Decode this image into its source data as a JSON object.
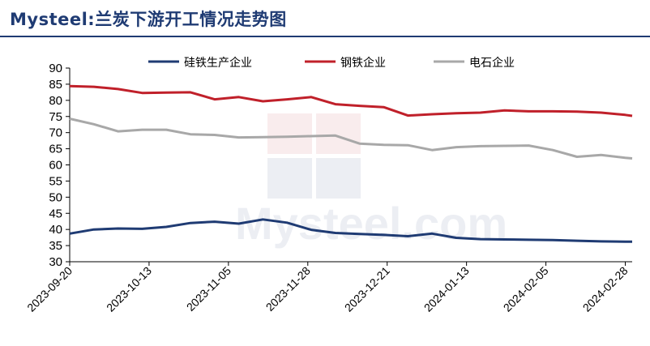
{
  "chart_data": {
    "type": "line",
    "title": "Mysteel:兰炭下游开工情况走势图",
    "watermark": "Mysteel.com",
    "ylim": [
      30,
      90
    ],
    "yticks": [
      30,
      35,
      40,
      45,
      50,
      55,
      60,
      65,
      70,
      75,
      80,
      85,
      90
    ],
    "x_tick_labels": [
      "2023-09-20",
      "2023-10-13",
      "2023-11-05",
      "2023-11-28",
      "2023-12-21",
      "2024-01-13",
      "2024-02-05",
      "2024-02-28"
    ],
    "x": [
      "2023-09-20",
      "2023-09-27",
      "2023-10-04",
      "2023-10-11",
      "2023-10-18",
      "2023-10-25",
      "2023-11-01",
      "2023-11-08",
      "2023-11-15",
      "2023-11-22",
      "2023-11-29",
      "2023-12-06",
      "2023-12-13",
      "2023-12-20",
      "2023-12-27",
      "2024-01-03",
      "2024-01-10",
      "2024-01-17",
      "2024-01-24",
      "2024-01-31",
      "2024-02-07",
      "2024-02-14",
      "2024-02-21",
      "2024-02-28",
      "2024-03-01"
    ],
    "series": [
      {
        "name": "硅铁生产企业",
        "color": "#1f3b73",
        "values": [
          38.7,
          40.0,
          40.3,
          40.2,
          40.8,
          42.0,
          42.4,
          41.8,
          43.1,
          42.1,
          39.9,
          38.9,
          38.6,
          38.3,
          37.9,
          38.7,
          37.4,
          37.0,
          36.9,
          36.8,
          36.7,
          36.5,
          36.3,
          36.2,
          36.2
        ]
      },
      {
        "name": "钢铁企业",
        "color": "#c0202a",
        "values": [
          84.4,
          84.2,
          83.5,
          82.3,
          82.4,
          82.5,
          80.3,
          81.0,
          79.7,
          80.3,
          81.0,
          78.8,
          78.3,
          77.9,
          75.3,
          75.7,
          76.0,
          76.2,
          76.9,
          76.6,
          76.6,
          76.5,
          76.2,
          75.5,
          75.2
        ]
      },
      {
        "name": "电石企业",
        "color": "#a8a8a8",
        "values": [
          74.3,
          72.6,
          70.4,
          70.9,
          70.9,
          69.5,
          69.3,
          68.5,
          68.6,
          68.7,
          68.9,
          69.1,
          66.6,
          66.2,
          66.1,
          64.6,
          65.5,
          65.8,
          65.9,
          66.0,
          64.6,
          62.5,
          63.1,
          62.2,
          62.0
        ]
      }
    ],
    "legend_position": "top",
    "grid": false
  }
}
